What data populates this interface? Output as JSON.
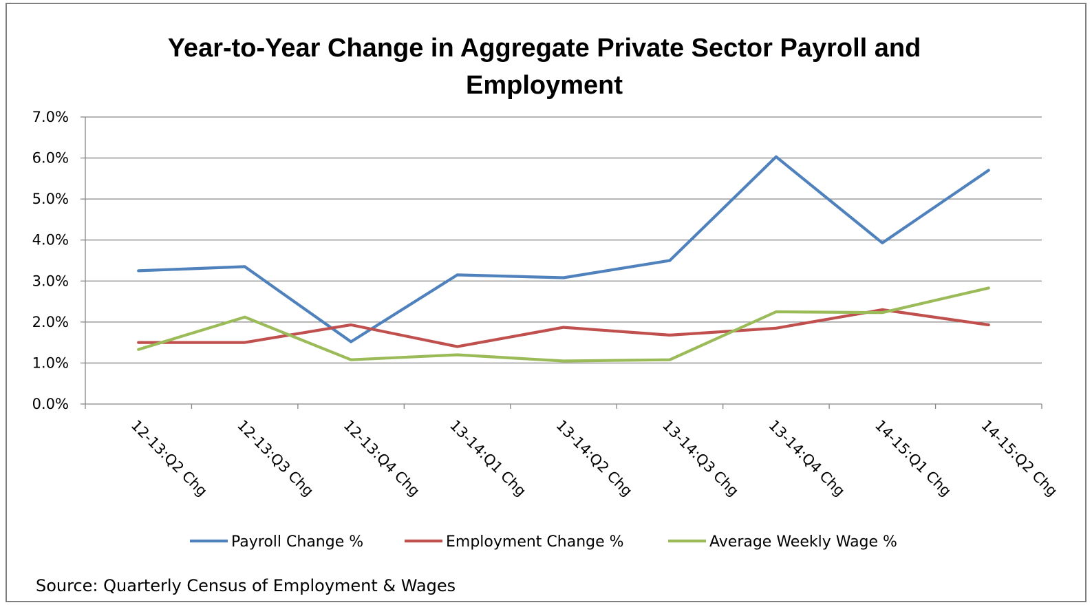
{
  "chart_data": {
    "type": "line",
    "title_lines": [
      "Year-to-Year Change in Aggregate Private Sector Payroll and",
      "Employment"
    ],
    "categories": [
      "12-13:Q2 Chg",
      "12-13:Q3 Chg",
      "12-13:Q4 Chg",
      "13-14:Q1 Chg",
      "13-14:Q2 Chg",
      "13-14:Q3 Chg",
      "13-14:Q4 Chg",
      "14-15:Q1 Chg",
      "14-15:Q2 Chg"
    ],
    "series": [
      {
        "name": "Payroll Change %",
        "color": "#4f81bd",
        "values": [
          3.25,
          3.35,
          1.52,
          3.15,
          3.08,
          3.5,
          6.03,
          3.93,
          5.7
        ]
      },
      {
        "name": "Employment Change %",
        "color": "#c0504d",
        "values": [
          1.5,
          1.5,
          1.93,
          1.4,
          1.87,
          1.68,
          1.85,
          2.3,
          1.93
        ]
      },
      {
        "name": "Average Weekly Wage %",
        "color": "#9bbb59",
        "values": [
          1.33,
          2.12,
          1.08,
          1.2,
          1.05,
          1.08,
          2.25,
          2.23,
          2.83
        ]
      }
    ],
    "ylim": [
      0,
      7
    ],
    "yticks": [
      "0.0%",
      "1.0%",
      "2.0%",
      "3.0%",
      "4.0%",
      "5.0%",
      "6.0%",
      "7.0%"
    ],
    "grid": true,
    "legend_position": "bottom",
    "source": "Source:  Quarterly Census of Employment & Wages"
  }
}
